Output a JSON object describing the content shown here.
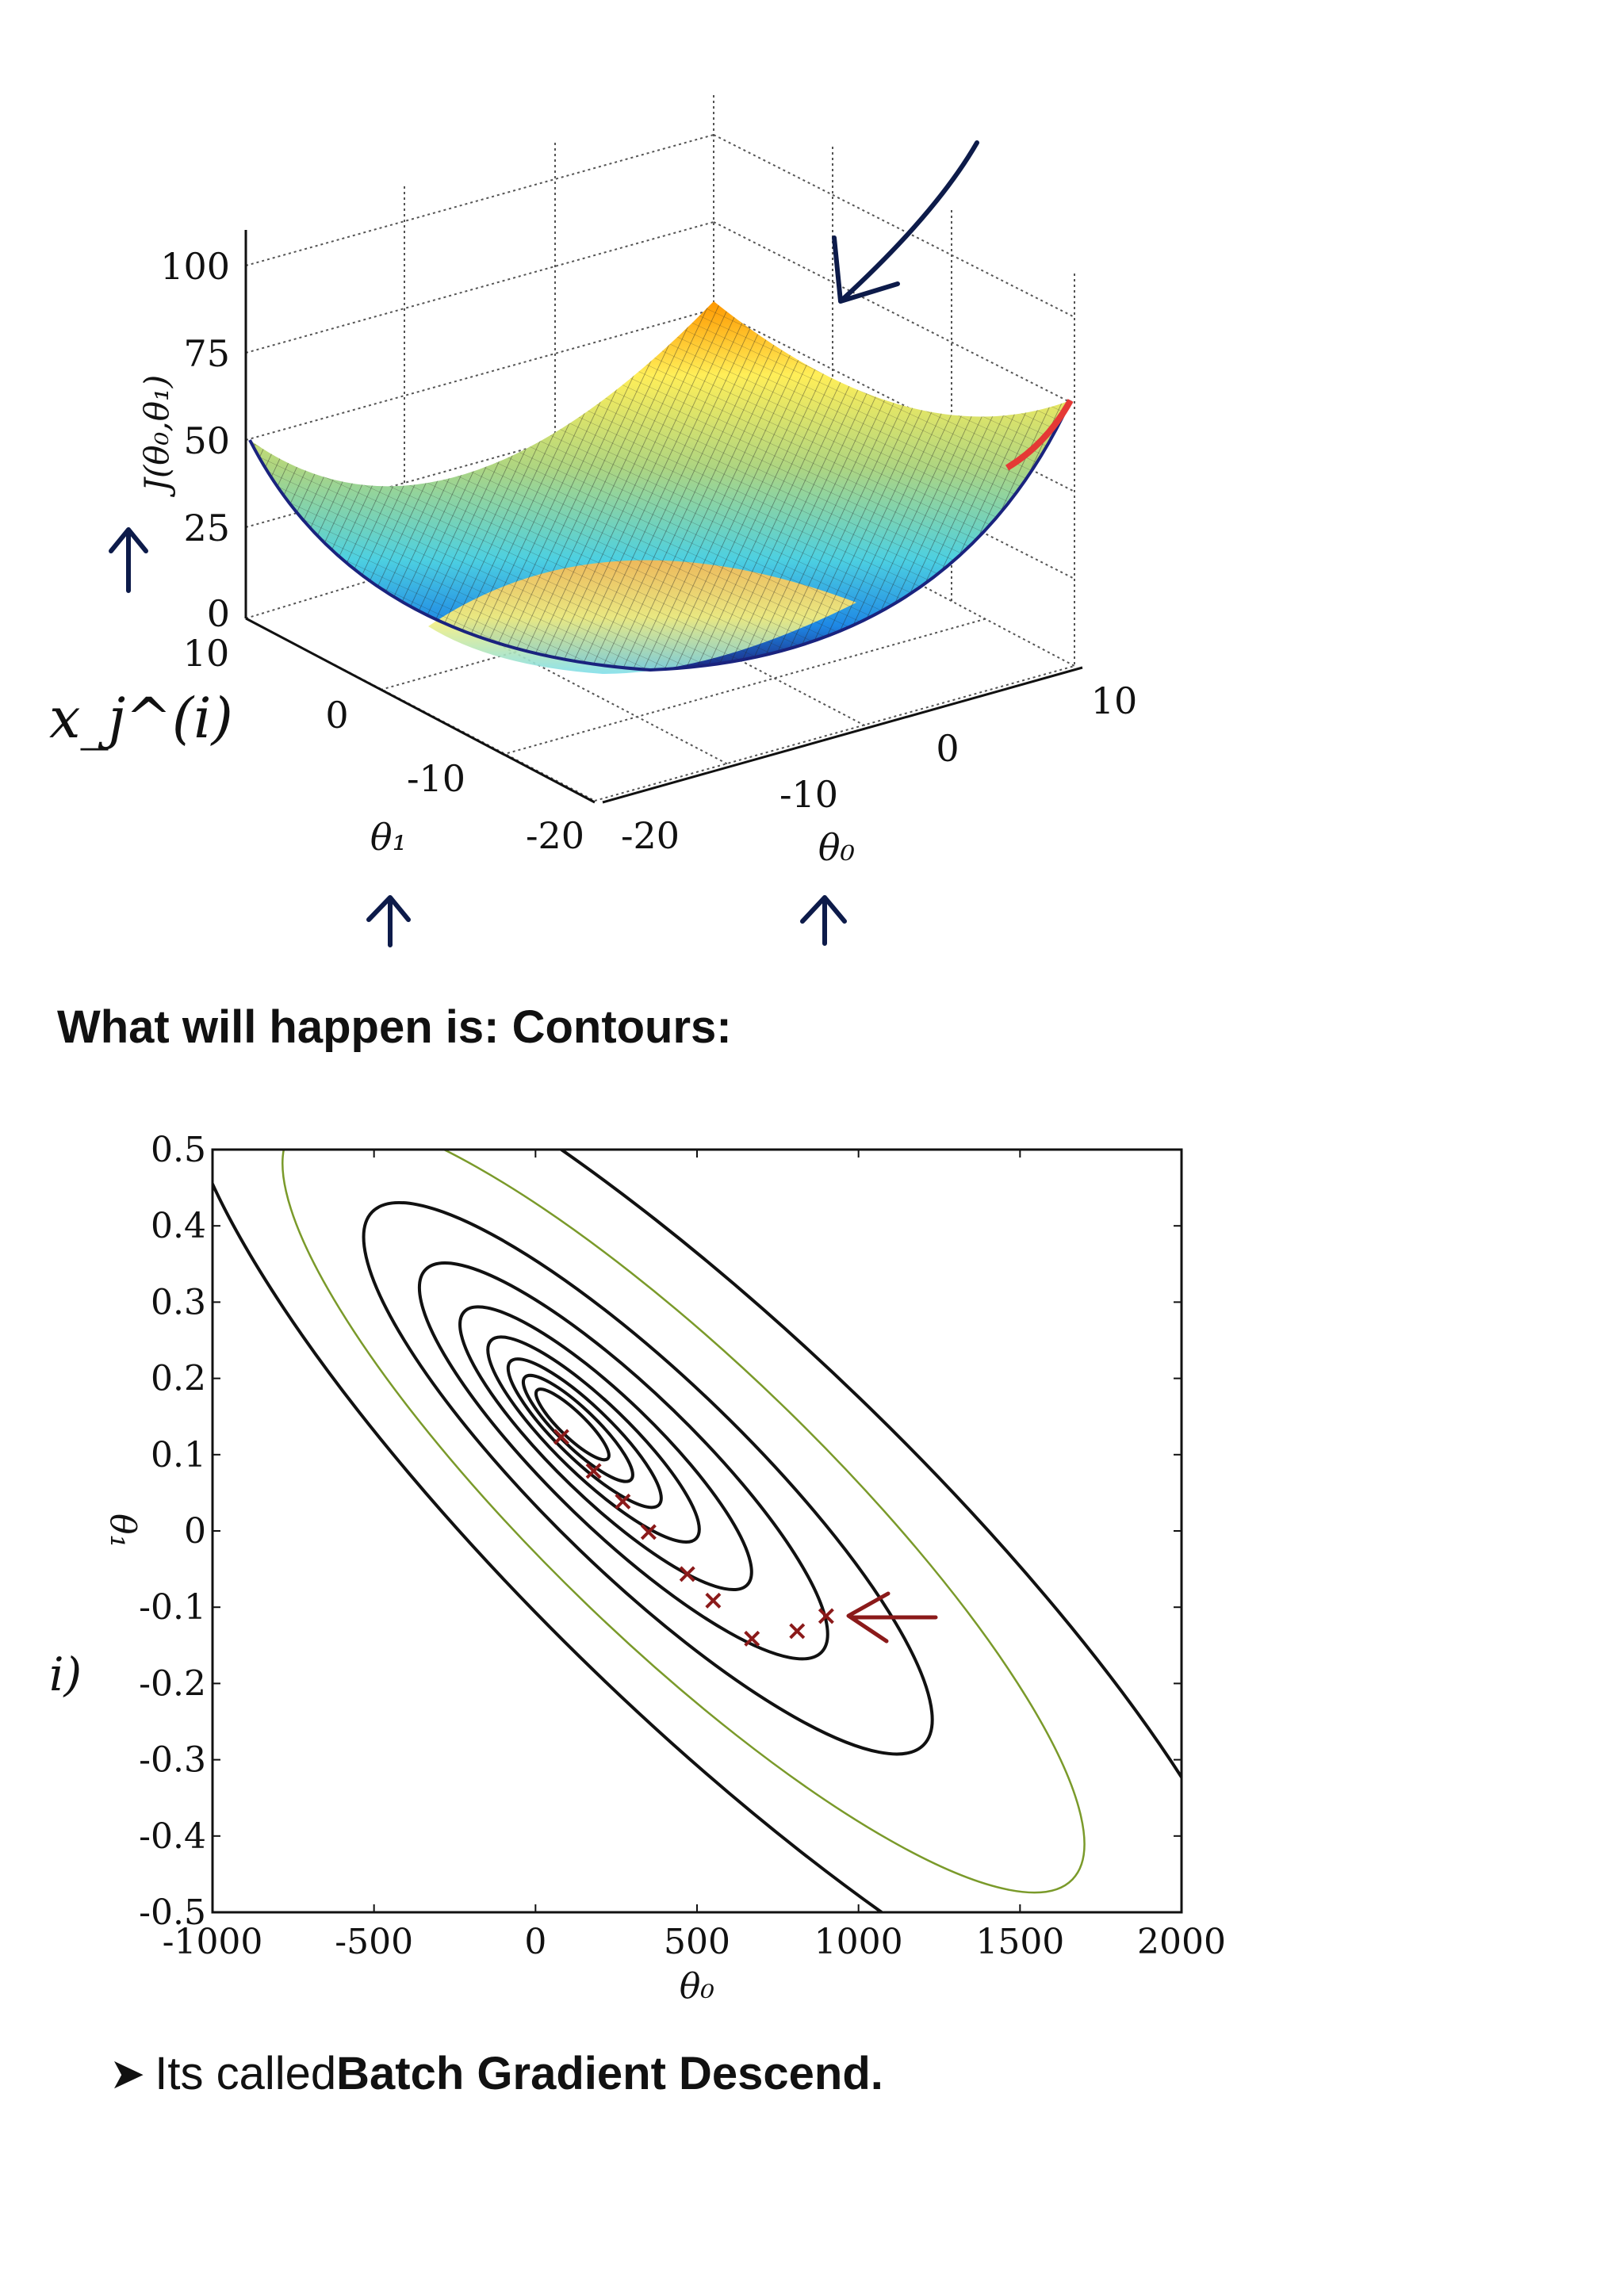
{
  "surface_plot": {
    "zlabel": "J(θ₀,θ₁)",
    "z_ticks": [
      "100",
      "75",
      "50",
      "25",
      "0"
    ],
    "theta1_ticks": [
      "10",
      "0",
      "-10",
      "-20"
    ],
    "theta0_ticks": [
      "-20",
      "-10",
      "0",
      "10"
    ],
    "theta1_label": "θ₁",
    "theta0_label": "θ₀",
    "side_annotation": "x_j^(i)",
    "colormap": [
      "#1a237e",
      "#1e88e5",
      "#4dd0e1",
      "#aed581",
      "#ffee58",
      "#ff9800",
      "#e53935"
    ]
  },
  "section_title": "What will happen is: Contours:",
  "chart_data": {
    "type": "contour",
    "title": "",
    "xlabel": "θ₀",
    "ylabel": "θ₁",
    "xlim": [
      -1000,
      2000
    ],
    "ylim": [
      -0.5,
      0.5
    ],
    "x_ticks": [
      "-1000",
      "-500",
      "0",
      "500",
      "1000",
      "1500",
      "2000"
    ],
    "y_ticks": [
      "0.5",
      "0.4",
      "0.3",
      "0.2",
      "0.1",
      "0",
      "-0.1",
      "-0.2",
      "-0.3",
      "-0.4",
      "-0.5"
    ],
    "contour_center": [
      80,
      0.15
    ],
    "descent_path": [
      {
        "x": 900,
        "y": -0.11
      },
      {
        "x": 810,
        "y": -0.13
      },
      {
        "x": 670,
        "y": -0.14
      },
      {
        "x": 550,
        "y": -0.09
      },
      {
        "x": 470,
        "y": -0.055
      },
      {
        "x": 350,
        "y": 0.0
      },
      {
        "x": 270,
        "y": 0.04
      },
      {
        "x": 180,
        "y": 0.08
      },
      {
        "x": 80,
        "y": 0.125
      }
    ],
    "side_annotation": "i)",
    "colors": {
      "contour": "#111111",
      "outer_contour": "#7a9a2a",
      "path": "#8b1a1a"
    }
  },
  "bullet": {
    "prefix": "Its called ",
    "bold": "Batch Gradient Descend."
  }
}
